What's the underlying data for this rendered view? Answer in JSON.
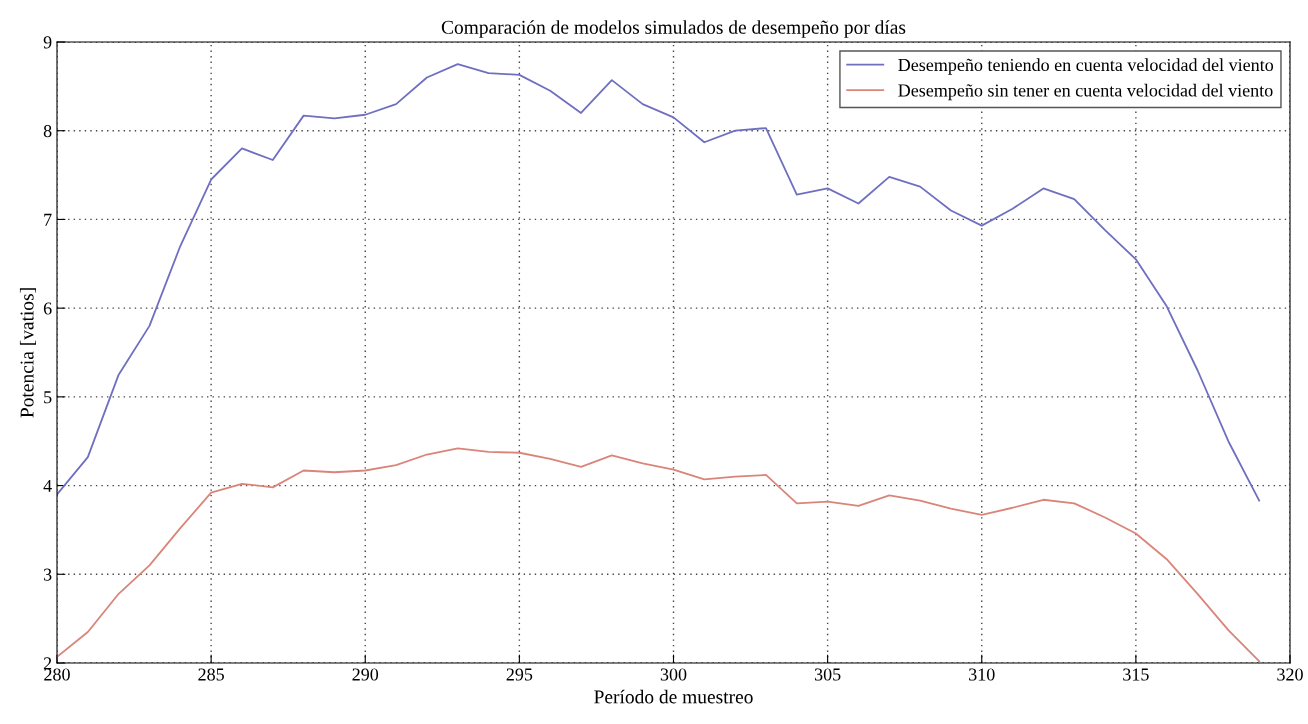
{
  "chart_data": {
    "type": "line",
    "title": "Comparación de modelos simulados de desempeño por días",
    "xlabel": "Período de muestreo",
    "ylabel": "Potencia [vatios]",
    "x": [
      280,
      281,
      282,
      283,
      284,
      285,
      286,
      287,
      288,
      289,
      290,
      291,
      292,
      293,
      294,
      295,
      296,
      297,
      298,
      299,
      300,
      301,
      302,
      303,
      304,
      305,
      306,
      307,
      308,
      309,
      310,
      311,
      312,
      313,
      314,
      315,
      316,
      317,
      318,
      319
    ],
    "series": [
      {
        "name": "Desempeño teniendo en cuenta velocidad del viento",
        "color": "#6f6fc0",
        "values": [
          3.9,
          4.32,
          5.25,
          5.8,
          6.7,
          7.45,
          7.8,
          7.67,
          8.17,
          8.14,
          8.18,
          8.3,
          8.6,
          8.75,
          8.65,
          8.63,
          8.45,
          8.2,
          8.57,
          8.3,
          8.15,
          7.87,
          8.0,
          8.03,
          7.28,
          7.35,
          7.18,
          7.48,
          7.37,
          7.1,
          6.93,
          7.12,
          7.35,
          7.23,
          6.88,
          6.55,
          6.02,
          5.3,
          4.5,
          3.83
        ]
      },
      {
        "name": "Desempeño sin tener en cuenta velocidad del viento",
        "color": "#d9857a",
        "values": [
          2.07,
          2.35,
          2.78,
          3.1,
          3.52,
          3.92,
          4.02,
          3.98,
          4.17,
          4.15,
          4.17,
          4.23,
          4.35,
          4.42,
          4.38,
          4.37,
          4.3,
          4.21,
          4.34,
          4.25,
          4.18,
          4.07,
          4.1,
          4.12,
          3.8,
          3.82,
          3.77,
          3.89,
          3.83,
          3.74,
          3.67,
          3.75,
          3.84,
          3.8,
          3.64,
          3.46,
          3.17,
          2.78,
          2.37,
          2.02
        ]
      }
    ],
    "xlim": [
      280,
      320
    ],
    "xticks": [
      280,
      285,
      290,
      295,
      300,
      305,
      310,
      315,
      320
    ],
    "ylim": [
      2,
      9
    ],
    "yticks": [
      2,
      3,
      4,
      5,
      6,
      7,
      8,
      9
    ],
    "grid": true,
    "legend": "top right",
    "line_style": "solid",
    "marker": "none"
  }
}
